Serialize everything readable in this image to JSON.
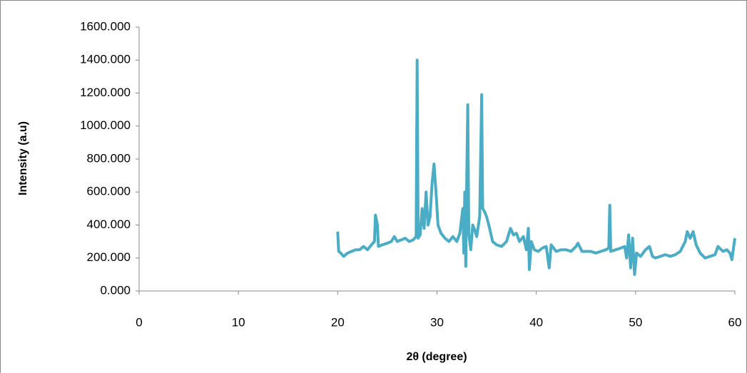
{
  "chart_data": {
    "type": "line",
    "x_label": "2θ (degree)",
    "y_label": "Intensity (a.u)",
    "xlim": [
      0,
      60
    ],
    "xticks": [
      0,
      10,
      20,
      30,
      40,
      50,
      60
    ],
    "ylim": [
      0,
      1600
    ],
    "yticks": [
      {
        "value": 0,
        "label": "0.000"
      },
      {
        "value": 200,
        "label": "200.000"
      },
      {
        "value": 400,
        "label": "400.000"
      },
      {
        "value": 600,
        "label": "600.000"
      },
      {
        "value": 800,
        "label": "800.000"
      },
      {
        "value": 1000,
        "label": "1000.000"
      },
      {
        "value": 1200,
        "label": "1200.000"
      },
      {
        "value": 1400,
        "label": "1400.000"
      },
      {
        "value": 1600,
        "label": "1600.000"
      }
    ],
    "color": "#4bacc6",
    "x": [
      20.0,
      20.1,
      20.3,
      20.6,
      21.0,
      21.4,
      21.8,
      22.2,
      22.6,
      23.0,
      23.4,
      23.7,
      23.8,
      24.0,
      24.1,
      24.5,
      25.0,
      25.4,
      25.7,
      26.0,
      26.4,
      26.8,
      27.2,
      27.6,
      27.9,
      28.0,
      28.1,
      28.3,
      28.5,
      28.7,
      28.9,
      29.1,
      29.3,
      29.5,
      29.7,
      29.9,
      30.1,
      30.4,
      30.8,
      31.2,
      31.6,
      32.0,
      32.3,
      32.6,
      32.7,
      32.8,
      32.9,
      33.0,
      33.1,
      33.2,
      33.4,
      33.6,
      33.8,
      34.0,
      34.3,
      34.5,
      34.6,
      34.8,
      35.0,
      35.3,
      35.6,
      36.0,
      36.5,
      37.0,
      37.4,
      37.7,
      38.0,
      38.3,
      38.7,
      39.0,
      39.2,
      39.3,
      39.5,
      39.8,
      40.2,
      40.6,
      41.0,
      41.3,
      41.5,
      42.0,
      42.5,
      43.0,
      43.5,
      44.0,
      44.2,
      44.6,
      45.0,
      45.5,
      46.0,
      46.5,
      47.0,
      47.3,
      47.4,
      47.5,
      48.0,
      48.5,
      48.9,
      49.1,
      49.3,
      49.5,
      49.7,
      49.9,
      50.1,
      50.5,
      51.0,
      51.4,
      51.7,
      52.0,
      52.5,
      53.0,
      53.5,
      54.0,
      54.5,
      55.0,
      55.2,
      55.5,
      55.8,
      56.1,
      56.5,
      57.0,
      57.5,
      58.0,
      58.3,
      58.8,
      59.2,
      59.5,
      59.7,
      60.0
    ],
    "values": [
      360,
      240,
      230,
      210,
      230,
      240,
      250,
      250,
      270,
      250,
      280,
      300,
      460,
      400,
      270,
      280,
      290,
      300,
      330,
      300,
      310,
      320,
      300,
      310,
      330,
      1400,
      320,
      340,
      500,
      380,
      600,
      400,
      450,
      650,
      770,
      600,
      400,
      350,
      320,
      300,
      330,
      300,
      350,
      500,
      230,
      600,
      150,
      700,
      1130,
      350,
      250,
      400,
      370,
      330,
      450,
      1190,
      500,
      480,
      450,
      380,
      300,
      280,
      270,
      300,
      380,
      340,
      350,
      300,
      330,
      250,
      380,
      130,
      300,
      250,
      240,
      260,
      270,
      140,
      280,
      240,
      250,
      250,
      240,
      270,
      290,
      240,
      240,
      240,
      230,
      240,
      250,
      260,
      520,
      240,
      250,
      260,
      270,
      200,
      340,
      140,
      320,
      100,
      230,
      210,
      250,
      270,
      210,
      200,
      210,
      220,
      210,
      220,
      240,
      300,
      360,
      320,
      360,
      280,
      230,
      200,
      210,
      220,
      270,
      240,
      250,
      230,
      190,
      320
    ]
  }
}
